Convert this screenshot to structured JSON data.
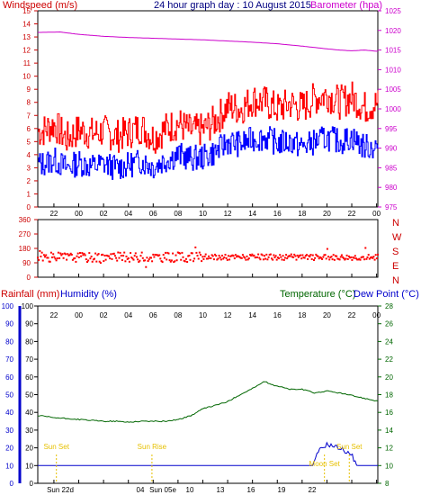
{
  "chart_data": [
    {
      "type": "line",
      "title": "24 hour graph day : 10 August 2015",
      "left_axis_label": "Windspeed (m/s)",
      "right_axis_label": "Barometer (hpa)",
      "left_ylim": [
        0,
        15
      ],
      "left_ticks": [
        "0",
        "1",
        "2",
        "3",
        "4",
        "5",
        "6",
        "7",
        "8",
        "9",
        "10",
        "11",
        "12",
        "13",
        "14",
        "15"
      ],
      "right_ylim": [
        975,
        1025
      ],
      "right_ticks": [
        "975",
        "980",
        "985",
        "990",
        "995",
        "1000",
        "1005",
        "1010",
        "1015",
        "1020",
        "1025"
      ],
      "x_ticks": [
        "22",
        "00",
        "02",
        "04",
        "06",
        "08",
        "10",
        "12",
        "14",
        "16",
        "18",
        "20",
        "22",
        "00"
      ],
      "colors": {
        "wind_gust": "#ff0000",
        "wind_avg": "#0000ff",
        "barometer": "#cc00cc",
        "left_axis": "#cc0000",
        "right_axis": "#cc00cc",
        "title": "#000080"
      },
      "series": [
        {
          "key": "barometer",
          "axis": "right",
          "x": [
            -3,
            -1.5,
            0,
            2,
            4,
            6,
            8,
            10,
            12,
            14,
            16,
            18,
            20,
            21,
            22,
            23,
            24
          ],
          "values": [
            1019.5,
            1019.6,
            1019.0,
            1018.5,
            1018.2,
            1018.0,
            1017.8,
            1017.6,
            1017.3,
            1017.0,
            1016.6,
            1016.0,
            1015.3,
            1015.0,
            1014.8,
            1015.0,
            1014.7
          ]
        },
        {
          "key": "wind_gust",
          "axis": "left",
          "x": [
            -3,
            -2,
            -1,
            0,
            1,
            2,
            3,
            4,
            5,
            6,
            7,
            8,
            9,
            10,
            11,
            12,
            13,
            14,
            15,
            16,
            17,
            18,
            19,
            20,
            21,
            22,
            23,
            24
          ],
          "values": [
            5.8,
            6.3,
            5.2,
            5.9,
            5.6,
            5.8,
            5.4,
            5.7,
            6.1,
            5.3,
            6.0,
            6.4,
            5.8,
            5.9,
            6.6,
            7.7,
            7.5,
            8.2,
            8.0,
            7.5,
            7.9,
            7.6,
            8.3,
            8.6,
            8.0,
            8.4,
            7.6,
            7.9
          ]
        },
        {
          "key": "wind_avg",
          "axis": "left",
          "x": [
            -3,
            -2,
            -1,
            0,
            1,
            2,
            3,
            4,
            5,
            6,
            7,
            8,
            9,
            10,
            11,
            12,
            13,
            14,
            15,
            16,
            17,
            18,
            19,
            20,
            21,
            22,
            23,
            24
          ],
          "values": [
            3.3,
            3.6,
            3.0,
            3.4,
            3.1,
            3.3,
            3.0,
            3.2,
            3.5,
            3.1,
            3.6,
            4.0,
            3.7,
            3.8,
            4.2,
            5.0,
            4.8,
            5.2,
            5.3,
            4.9,
            5.0,
            4.6,
            5.0,
            5.3,
            5.0,
            5.3,
            4.6,
            4.6
          ]
        }
      ]
    },
    {
      "type": "scatter",
      "left_axis_label": "",
      "left_ylim": [
        0,
        360
      ],
      "left_ticks": [
        "0",
        "90",
        "180",
        "270",
        "360"
      ],
      "right_compass": [
        "N",
        "W",
        "S",
        "E",
        "N"
      ],
      "colors": {
        "points": "#ff0000",
        "axis": "#cc0000"
      },
      "x_ticks": [],
      "series": [
        {
          "key": "wind_direction",
          "x_start": -3.3,
          "x_end": 24.1,
          "base": 125,
          "spread": 30
        }
      ]
    },
    {
      "type": "line",
      "left_axis_label_1": "Rainfall (mm)",
      "left_axis_label_2": "Humidity (%)",
      "right_axis_label_1": "Temperature (°C)",
      "right_axis_label_2": "Dew Point (°C)",
      "left_ylim": [
        0,
        100
      ],
      "left_ticks": [
        "0",
        "10",
        "20",
        "30",
        "40",
        "50",
        "60",
        "70",
        "80",
        "90",
        "100"
      ],
      "right_ylim": [
        8,
        28
      ],
      "right_ticks": [
        "8",
        "10",
        "12",
        "14",
        "16",
        "18",
        "20",
        "22",
        "24",
        "26",
        "28"
      ],
      "x_ticks": [
        "22",
        "00",
        "02",
        "04",
        "06",
        "08",
        "10",
        "12",
        "14",
        "16",
        "18",
        "20",
        "22",
        "00"
      ],
      "colors": {
        "temperature": "#006600",
        "humidity": "#0000cc",
        "rainfall": "#cc0000",
        "right_axis": "#006600",
        "event_label": "#e6c000"
      },
      "series": [
        {
          "key": "temperature",
          "axis": "right",
          "x": [
            -3,
            -2,
            -1,
            0,
            1,
            2,
            3,
            4,
            5,
            6,
            7,
            8,
            9,
            10,
            11,
            12,
            13,
            14,
            15,
            15.5,
            16,
            17,
            18,
            19,
            20,
            21,
            22,
            23,
            24
          ],
          "values": [
            15.6,
            15.4,
            15.3,
            15.2,
            15.1,
            15.0,
            15.0,
            14.9,
            15.0,
            15.0,
            15.0,
            15.2,
            15.6,
            16.4,
            16.8,
            17.2,
            18.0,
            18.7,
            19.5,
            19.1,
            19.0,
            18.6,
            18.6,
            18.2,
            18.4,
            18.2,
            17.9,
            17.6,
            17.3
          ]
        },
        {
          "key": "humidity",
          "axis": "left",
          "x": [
            -3,
            18.9,
            19.3,
            20,
            20.5,
            21,
            21.5,
            22,
            22.4,
            24
          ],
          "values": [
            10,
            10,
            18,
            22,
            21,
            20,
            18,
            16,
            10,
            10
          ]
        }
      ],
      "events": [
        {
          "label": "Sun Set",
          "x": -1.8
        },
        {
          "label": "Sun Rise",
          "x": 5.9
        },
        {
          "label": "Moon Set",
          "x": 19.8
        },
        {
          "label": "Sun Set",
          "x": 21.8
        }
      ],
      "bottom_labels": [
        "Sun 22d",
        "04",
        "Sun 05e",
        "10",
        "13",
        "16",
        "19",
        "22"
      ]
    }
  ]
}
